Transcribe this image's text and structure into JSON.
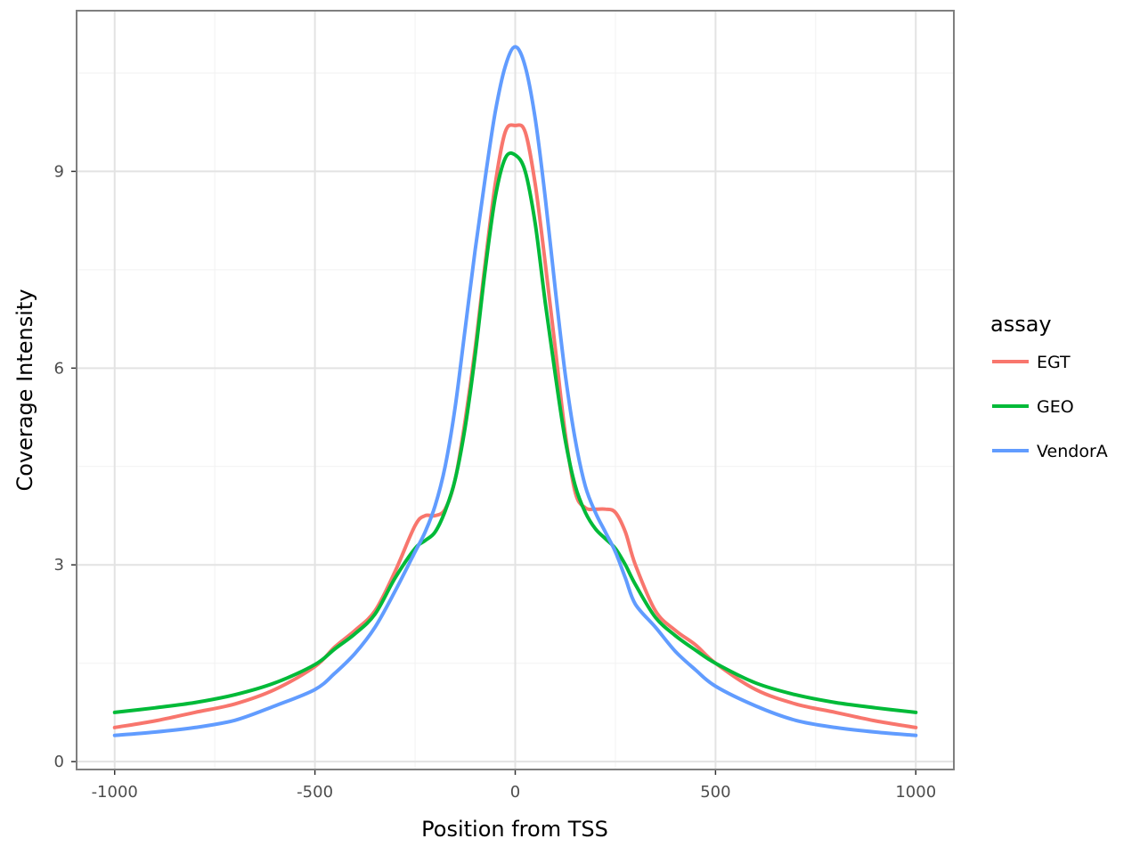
{
  "chart_data": {
    "type": "line",
    "xlabel": "Position from TSS",
    "ylabel": "Coverage Intensity",
    "xlim": [
      -1095,
      1095
    ],
    "ylim": [
      -0.12,
      11.45
    ],
    "x_ticks": [
      -1000,
      -500,
      0,
      500,
      1000
    ],
    "x_tick_labels": [
      "-1000",
      "-500",
      "0",
      "500",
      "1000"
    ],
    "y_ticks": [
      0,
      3,
      6,
      9
    ],
    "y_tick_labels": [
      "0",
      "3",
      "6",
      "9"
    ],
    "grid": true,
    "legend": {
      "title": "assay",
      "placement": "right"
    },
    "x": [
      -1000,
      -900,
      -800,
      -700,
      -600,
      -500,
      -450,
      -400,
      -350,
      -300,
      -250,
      -225,
      -200,
      -175,
      -150,
      -125,
      -100,
      -75,
      -50,
      -25,
      0,
      25,
      50,
      75,
      100,
      125,
      150,
      175,
      200,
      225,
      250,
      275,
      300,
      350,
      400,
      450,
      500,
      600,
      700,
      800,
      900,
      1000
    ],
    "series": [
      {
        "name": "EGT",
        "color": "#F8766D",
        "values": [
          0.52,
          0.62,
          0.75,
          0.88,
          1.1,
          1.45,
          1.75,
          2.0,
          2.3,
          2.9,
          3.6,
          3.75,
          3.75,
          3.85,
          4.3,
          5.2,
          6.3,
          7.6,
          8.8,
          9.6,
          9.7,
          9.6,
          8.8,
          7.6,
          6.3,
          5.0,
          4.1,
          3.87,
          3.85,
          3.85,
          3.8,
          3.5,
          3.0,
          2.3,
          2.0,
          1.78,
          1.5,
          1.1,
          0.88,
          0.75,
          0.62,
          0.52
        ]
      },
      {
        "name": "GEO",
        "color": "#00BA38",
        "values": [
          0.75,
          0.82,
          0.9,
          1.02,
          1.2,
          1.48,
          1.72,
          1.95,
          2.25,
          2.8,
          3.25,
          3.37,
          3.5,
          3.82,
          4.3,
          5.1,
          6.2,
          7.5,
          8.6,
          9.2,
          9.25,
          9.0,
          8.2,
          7.0,
          5.9,
          4.9,
          4.2,
          3.8,
          3.55,
          3.4,
          3.25,
          3.0,
          2.7,
          2.2,
          1.92,
          1.7,
          1.5,
          1.2,
          1.02,
          0.9,
          0.82,
          0.75
        ]
      },
      {
        "name": "VendorA",
        "color": "#619CFF",
        "values": [
          0.4,
          0.45,
          0.52,
          0.63,
          0.85,
          1.1,
          1.35,
          1.65,
          2.05,
          2.6,
          3.2,
          3.5,
          3.9,
          4.5,
          5.4,
          6.6,
          7.8,
          8.9,
          9.9,
          10.6,
          10.9,
          10.6,
          9.8,
          8.6,
          7.2,
          5.9,
          4.9,
          4.2,
          3.8,
          3.5,
          3.2,
          2.8,
          2.4,
          2.05,
          1.68,
          1.4,
          1.15,
          0.85,
          0.63,
          0.52,
          0.45,
          0.4
        ]
      }
    ]
  }
}
